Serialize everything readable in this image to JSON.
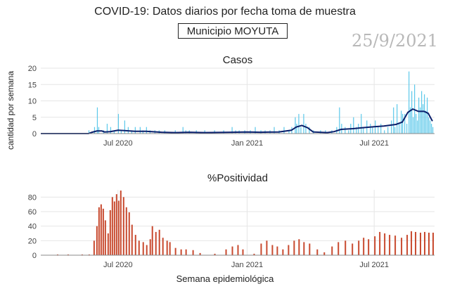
{
  "header": {
    "title": "COVID-19: Datos diarios por fecha toma de muestra",
    "municipality": "Municipio MOYUTA",
    "date_stamp": "25/9/2021"
  },
  "axes": {
    "ylabel": "cantidad por semana",
    "xlabel": "Semana epidemiológica"
  },
  "colors": {
    "cases_bar": "#5bc8ea",
    "cases_line": "#0a1f6b",
    "positivity_bar": "#c8492e",
    "grid": "#e6e6e6"
  },
  "chart_data": [
    {
      "type": "bar",
      "title": "Casos",
      "x_start": "2020-03-13",
      "x_end": "2021-09-25",
      "xticks": [
        "Jul 2020",
        "Jan 2021",
        "Jul 2021"
      ],
      "xtick_dates": [
        "2020-07-01",
        "2021-01-01",
        "2021-07-01"
      ],
      "ylim": [
        0,
        20
      ],
      "yticks": [
        0,
        5,
        10,
        15,
        20
      ],
      "grid": true,
      "series": [
        {
          "kind": "bar",
          "values": [
            {
              "x": "2020-03-13",
              "y": 0
            },
            {
              "x": "2020-05-20",
              "y": 1
            },
            {
              "x": "2020-05-28",
              "y": 2
            },
            {
              "x": "2020-06-01",
              "y": 8
            },
            {
              "x": "2020-06-03",
              "y": 2
            },
            {
              "x": "2020-06-10",
              "y": 1
            },
            {
              "x": "2020-06-15",
              "y": 3
            },
            {
              "x": "2020-06-20",
              "y": 2
            },
            {
              "x": "2020-06-25",
              "y": 1
            },
            {
              "x": "2020-07-01",
              "y": 6
            },
            {
              "x": "2020-07-05",
              "y": 1
            },
            {
              "x": "2020-07-10",
              "y": 4
            },
            {
              "x": "2020-07-15",
              "y": 2
            },
            {
              "x": "2020-07-20",
              "y": 1
            },
            {
              "x": "2020-07-25",
              "y": 2
            },
            {
              "x": "2020-08-01",
              "y": 2
            },
            {
              "x": "2020-08-05",
              "y": 1
            },
            {
              "x": "2020-08-10",
              "y": 2
            },
            {
              "x": "2020-08-15",
              "y": 1
            },
            {
              "x": "2020-08-22",
              "y": 1
            },
            {
              "x": "2020-08-28",
              "y": 1
            },
            {
              "x": "2020-09-05",
              "y": 1
            },
            {
              "x": "2020-09-20",
              "y": 1
            },
            {
              "x": "2020-10-01",
              "y": 2
            },
            {
              "x": "2020-10-05",
              "y": 1
            },
            {
              "x": "2020-10-10",
              "y": 1
            },
            {
              "x": "2020-10-20",
              "y": 1
            },
            {
              "x": "2020-11-01",
              "y": 1
            },
            {
              "x": "2020-11-15",
              "y": 1
            },
            {
              "x": "2020-11-28",
              "y": 1
            },
            {
              "x": "2020-12-10",
              "y": 2
            },
            {
              "x": "2020-12-15",
              "y": 1
            },
            {
              "x": "2020-12-20",
              "y": 1
            },
            {
              "x": "2020-12-28",
              "y": 1
            },
            {
              "x": "2021-01-05",
              "y": 1
            },
            {
              "x": "2021-01-12",
              "y": 2
            },
            {
              "x": "2021-01-20",
              "y": 1
            },
            {
              "x": "2021-01-26",
              "y": 1
            },
            {
              "x": "2021-02-02",
              "y": 1
            },
            {
              "x": "2021-02-08",
              "y": 2
            },
            {
              "x": "2021-02-15",
              "y": 1
            },
            {
              "x": "2021-02-22",
              "y": 2
            },
            {
              "x": "2021-03-01",
              "y": 1
            },
            {
              "x": "2021-03-05",
              "y": 2
            },
            {
              "x": "2021-03-10",
              "y": 5
            },
            {
              "x": "2021-03-12",
              "y": 3
            },
            {
              "x": "2021-03-15",
              "y": 6
            },
            {
              "x": "2021-03-18",
              "y": 2
            },
            {
              "x": "2021-03-22",
              "y": 6
            },
            {
              "x": "2021-03-25",
              "y": 3
            },
            {
              "x": "2021-03-30",
              "y": 2
            },
            {
              "x": "2021-04-05",
              "y": 1
            },
            {
              "x": "2021-04-15",
              "y": 1
            },
            {
              "x": "2021-04-22",
              "y": 1
            },
            {
              "x": "2021-05-01",
              "y": 1
            },
            {
              "x": "2021-05-08",
              "y": 2
            },
            {
              "x": "2021-05-12",
              "y": 8
            },
            {
              "x": "2021-05-15",
              "y": 3
            },
            {
              "x": "2021-05-20",
              "y": 2
            },
            {
              "x": "2021-05-25",
              "y": 1
            },
            {
              "x": "2021-05-28",
              "y": 3
            },
            {
              "x": "2021-06-01",
              "y": 5
            },
            {
              "x": "2021-06-05",
              "y": 2
            },
            {
              "x": "2021-06-08",
              "y": 3
            },
            {
              "x": "2021-06-12",
              "y": 6
            },
            {
              "x": "2021-06-15",
              "y": 2
            },
            {
              "x": "2021-06-20",
              "y": 4
            },
            {
              "x": "2021-06-25",
              "y": 3
            },
            {
              "x": "2021-06-28",
              "y": 2
            },
            {
              "x": "2021-07-02",
              "y": 4
            },
            {
              "x": "2021-07-06",
              "y": 2
            },
            {
              "x": "2021-07-10",
              "y": 3
            },
            {
              "x": "2021-07-15",
              "y": 1
            },
            {
              "x": "2021-07-20",
              "y": 2
            },
            {
              "x": "2021-07-25",
              "y": 4
            },
            {
              "x": "2021-07-28",
              "y": 8
            },
            {
              "x": "2021-07-30",
              "y": 2
            },
            {
              "x": "2021-08-02",
              "y": 9
            },
            {
              "x": "2021-08-05",
              "y": 3
            },
            {
              "x": "2021-08-08",
              "y": 7
            },
            {
              "x": "2021-08-10",
              "y": 6
            },
            {
              "x": "2021-08-13",
              "y": 6
            },
            {
              "x": "2021-08-16",
              "y": 3
            },
            {
              "x": "2021-08-19",
              "y": 19
            },
            {
              "x": "2021-08-21",
              "y": 8
            },
            {
              "x": "2021-08-23",
              "y": 13
            },
            {
              "x": "2021-08-25",
              "y": 5
            },
            {
              "x": "2021-08-27",
              "y": 15
            },
            {
              "x": "2021-08-29",
              "y": 6
            },
            {
              "x": "2021-08-31",
              "y": 4
            },
            {
              "x": "2021-09-02",
              "y": 11
            },
            {
              "x": "2021-09-04",
              "y": 8
            },
            {
              "x": "2021-09-06",
              "y": 13
            },
            {
              "x": "2021-09-08",
              "y": 9
            },
            {
              "x": "2021-09-10",
              "y": 12
            },
            {
              "x": "2021-09-12",
              "y": 7
            },
            {
              "x": "2021-09-14",
              "y": 11
            },
            {
              "x": "2021-09-16",
              "y": 5
            },
            {
              "x": "2021-09-18",
              "y": 4
            },
            {
              "x": "2021-09-20",
              "y": 3
            },
            {
              "x": "2021-09-22",
              "y": 2
            }
          ]
        },
        {
          "kind": "line",
          "values": [
            {
              "x": "2020-03-13",
              "y": 0
            },
            {
              "x": "2020-05-20",
              "y": 0
            },
            {
              "x": "2020-05-25",
              "y": 0.4
            },
            {
              "x": "2020-06-01",
              "y": 0.8
            },
            {
              "x": "2020-06-08",
              "y": 0.8
            },
            {
              "x": "2020-06-12",
              "y": 0.5
            },
            {
              "x": "2020-06-20",
              "y": 0.6
            },
            {
              "x": "2020-07-01",
              "y": 1
            },
            {
              "x": "2020-07-10",
              "y": 0.9
            },
            {
              "x": "2020-07-25",
              "y": 0.7
            },
            {
              "x": "2020-08-10",
              "y": 0.7
            },
            {
              "x": "2020-09-01",
              "y": 0.4
            },
            {
              "x": "2020-09-20",
              "y": 0.3
            },
            {
              "x": "2020-10-10",
              "y": 0.4
            },
            {
              "x": "2020-11-01",
              "y": 0.3
            },
            {
              "x": "2020-12-10",
              "y": 0.4
            },
            {
              "x": "2021-01-01",
              "y": 0.5
            },
            {
              "x": "2021-01-20",
              "y": 0.4
            },
            {
              "x": "2021-02-15",
              "y": 0.5
            },
            {
              "x": "2021-03-05",
              "y": 1
            },
            {
              "x": "2021-03-12",
              "y": 2
            },
            {
              "x": "2021-03-20",
              "y": 2.5
            },
            {
              "x": "2021-03-28",
              "y": 1.8
            },
            {
              "x": "2021-04-05",
              "y": 0.5
            },
            {
              "x": "2021-04-25",
              "y": 0.3
            },
            {
              "x": "2021-05-05",
              "y": 0.6
            },
            {
              "x": "2021-05-15",
              "y": 1.3
            },
            {
              "x": "2021-06-01",
              "y": 1.5
            },
            {
              "x": "2021-06-15",
              "y": 1.8
            },
            {
              "x": "2021-07-01",
              "y": 2.1
            },
            {
              "x": "2021-07-15",
              "y": 2.3
            },
            {
              "x": "2021-08-01",
              "y": 2.8
            },
            {
              "x": "2021-08-10",
              "y": 3.5
            },
            {
              "x": "2021-08-18",
              "y": 6.5
            },
            {
              "x": "2021-08-25",
              "y": 7.5
            },
            {
              "x": "2021-09-02",
              "y": 6.8
            },
            {
              "x": "2021-09-10",
              "y": 6.8
            },
            {
              "x": "2021-09-16",
              "y": 6.2
            },
            {
              "x": "2021-09-22",
              "y": 3.8
            }
          ]
        }
      ]
    },
    {
      "type": "bar",
      "title": "%Positividad",
      "x_start": "2020-03-13",
      "x_end": "2021-09-25",
      "xticks": [
        "Jul 2020",
        "Jan 2021",
        "Jul 2021"
      ],
      "xtick_dates": [
        "2020-07-01",
        "2021-01-01",
        "2021-07-01"
      ],
      "ylim": [
        0,
        90
      ],
      "yticks": [
        0,
        20,
        40,
        60,
        80
      ],
      "grid": true,
      "values": [
        {
          "x": "2020-04-05",
          "y": 1
        },
        {
          "x": "2020-04-20",
          "y": 1
        },
        {
          "x": "2020-05-10",
          "y": 1
        },
        {
          "x": "2020-05-20",
          "y": 1
        },
        {
          "x": "2020-05-27",
          "y": 20
        },
        {
          "x": "2020-05-31",
          "y": 40
        },
        {
          "x": "2020-06-03",
          "y": 66
        },
        {
          "x": "2020-06-06",
          "y": 70
        },
        {
          "x": "2020-06-09",
          "y": 64
        },
        {
          "x": "2020-06-12",
          "y": 48
        },
        {
          "x": "2020-06-16",
          "y": 30
        },
        {
          "x": "2020-06-19",
          "y": 62
        },
        {
          "x": "2020-06-22",
          "y": 80
        },
        {
          "x": "2020-06-25",
          "y": 74
        },
        {
          "x": "2020-06-28",
          "y": 84
        },
        {
          "x": "2020-07-01",
          "y": 75
        },
        {
          "x": "2020-07-04",
          "y": 89
        },
        {
          "x": "2020-07-08",
          "y": 80
        },
        {
          "x": "2020-07-12",
          "y": 66
        },
        {
          "x": "2020-07-16",
          "y": 59
        },
        {
          "x": "2020-07-20",
          "y": 42
        },
        {
          "x": "2020-07-25",
          "y": 28
        },
        {
          "x": "2020-07-30",
          "y": 20
        },
        {
          "x": "2020-08-05",
          "y": 18
        },
        {
          "x": "2020-08-10",
          "y": 14
        },
        {
          "x": "2020-08-15",
          "y": 22
        },
        {
          "x": "2020-08-18",
          "y": 40
        },
        {
          "x": "2020-08-23",
          "y": 32
        },
        {
          "x": "2020-08-28",
          "y": 35
        },
        {
          "x": "2020-09-02",
          "y": 24
        },
        {
          "x": "2020-09-08",
          "y": 20
        },
        {
          "x": "2020-09-12",
          "y": 18
        },
        {
          "x": "2020-09-20",
          "y": 10
        },
        {
          "x": "2020-09-28",
          "y": 8
        },
        {
          "x": "2020-10-05",
          "y": 8
        },
        {
          "x": "2020-10-15",
          "y": 7
        },
        {
          "x": "2020-10-25",
          "y": 3
        },
        {
          "x": "2020-11-15",
          "y": 2
        },
        {
          "x": "2020-12-01",
          "y": 8
        },
        {
          "x": "2020-12-10",
          "y": 12
        },
        {
          "x": "2020-12-18",
          "y": 14
        },
        {
          "x": "2020-12-25",
          "y": 8
        },
        {
          "x": "2021-01-10",
          "y": 2
        },
        {
          "x": "2021-01-20",
          "y": 16
        },
        {
          "x": "2021-01-28",
          "y": 20
        },
        {
          "x": "2021-02-05",
          "y": 14
        },
        {
          "x": "2021-02-12",
          "y": 12
        },
        {
          "x": "2021-02-20",
          "y": 8
        },
        {
          "x": "2021-02-28",
          "y": 14
        },
        {
          "x": "2021-03-08",
          "y": 20
        },
        {
          "x": "2021-03-15",
          "y": 22
        },
        {
          "x": "2021-03-22",
          "y": 18
        },
        {
          "x": "2021-03-30",
          "y": 16
        },
        {
          "x": "2021-04-10",
          "y": 8
        },
        {
          "x": "2021-04-20",
          "y": 4
        },
        {
          "x": "2021-05-01",
          "y": 12
        },
        {
          "x": "2021-05-10",
          "y": 18
        },
        {
          "x": "2021-05-20",
          "y": 20
        },
        {
          "x": "2021-05-30",
          "y": 16
        },
        {
          "x": "2021-06-08",
          "y": 20
        },
        {
          "x": "2021-06-15",
          "y": 24
        },
        {
          "x": "2021-06-22",
          "y": 22
        },
        {
          "x": "2021-07-01",
          "y": 26
        },
        {
          "x": "2021-07-08",
          "y": 32
        },
        {
          "x": "2021-07-15",
          "y": 30
        },
        {
          "x": "2021-07-22",
          "y": 28
        },
        {
          "x": "2021-07-30",
          "y": 27
        },
        {
          "x": "2021-08-08",
          "y": 24
        },
        {
          "x": "2021-08-16",
          "y": 28
        },
        {
          "x": "2021-08-22",
          "y": 33
        },
        {
          "x": "2021-08-28",
          "y": 32
        },
        {
          "x": "2021-09-04",
          "y": 31
        },
        {
          "x": "2021-09-10",
          "y": 32
        },
        {
          "x": "2021-09-16",
          "y": 31
        },
        {
          "x": "2021-09-22",
          "y": 31
        }
      ]
    }
  ]
}
